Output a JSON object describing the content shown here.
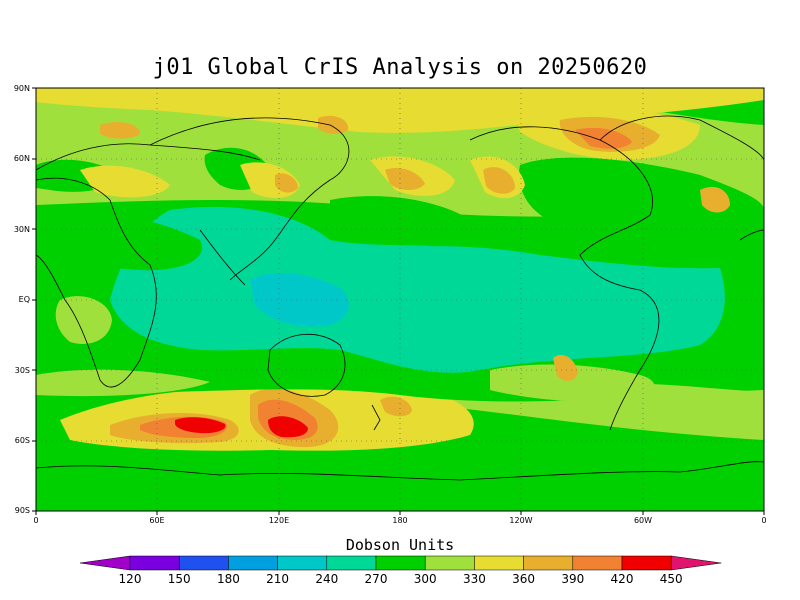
{
  "title": "j01 Global CrIS Analysis on 20250620",
  "axes": {
    "y_labels": [
      "90N",
      "60N",
      "30N",
      "EQ",
      "30S",
      "60S",
      "90S"
    ],
    "x_labels": [
      "0",
      "60E",
      "120E",
      "180",
      "120W",
      "60W",
      "0"
    ]
  },
  "colorbar": {
    "title": "Dobson Units",
    "labels": [
      "120",
      "150",
      "180",
      "210",
      "240",
      "270",
      "300",
      "330",
      "360",
      "390",
      "420",
      "450"
    ],
    "colors": [
      "#a000c8",
      "#7a00e0",
      "#2050f0",
      "#00a0e0",
      "#00c8c8",
      "#00d898",
      "#00d000",
      "#a0e03c",
      "#e6dc32",
      "#e8af2e",
      "#f08232",
      "#f00000",
      "#e0146e"
    ]
  },
  "map": {
    "background_color": "#a0e03c",
    "projection": "cylindrical-equidistant",
    "grid": "dotted"
  }
}
